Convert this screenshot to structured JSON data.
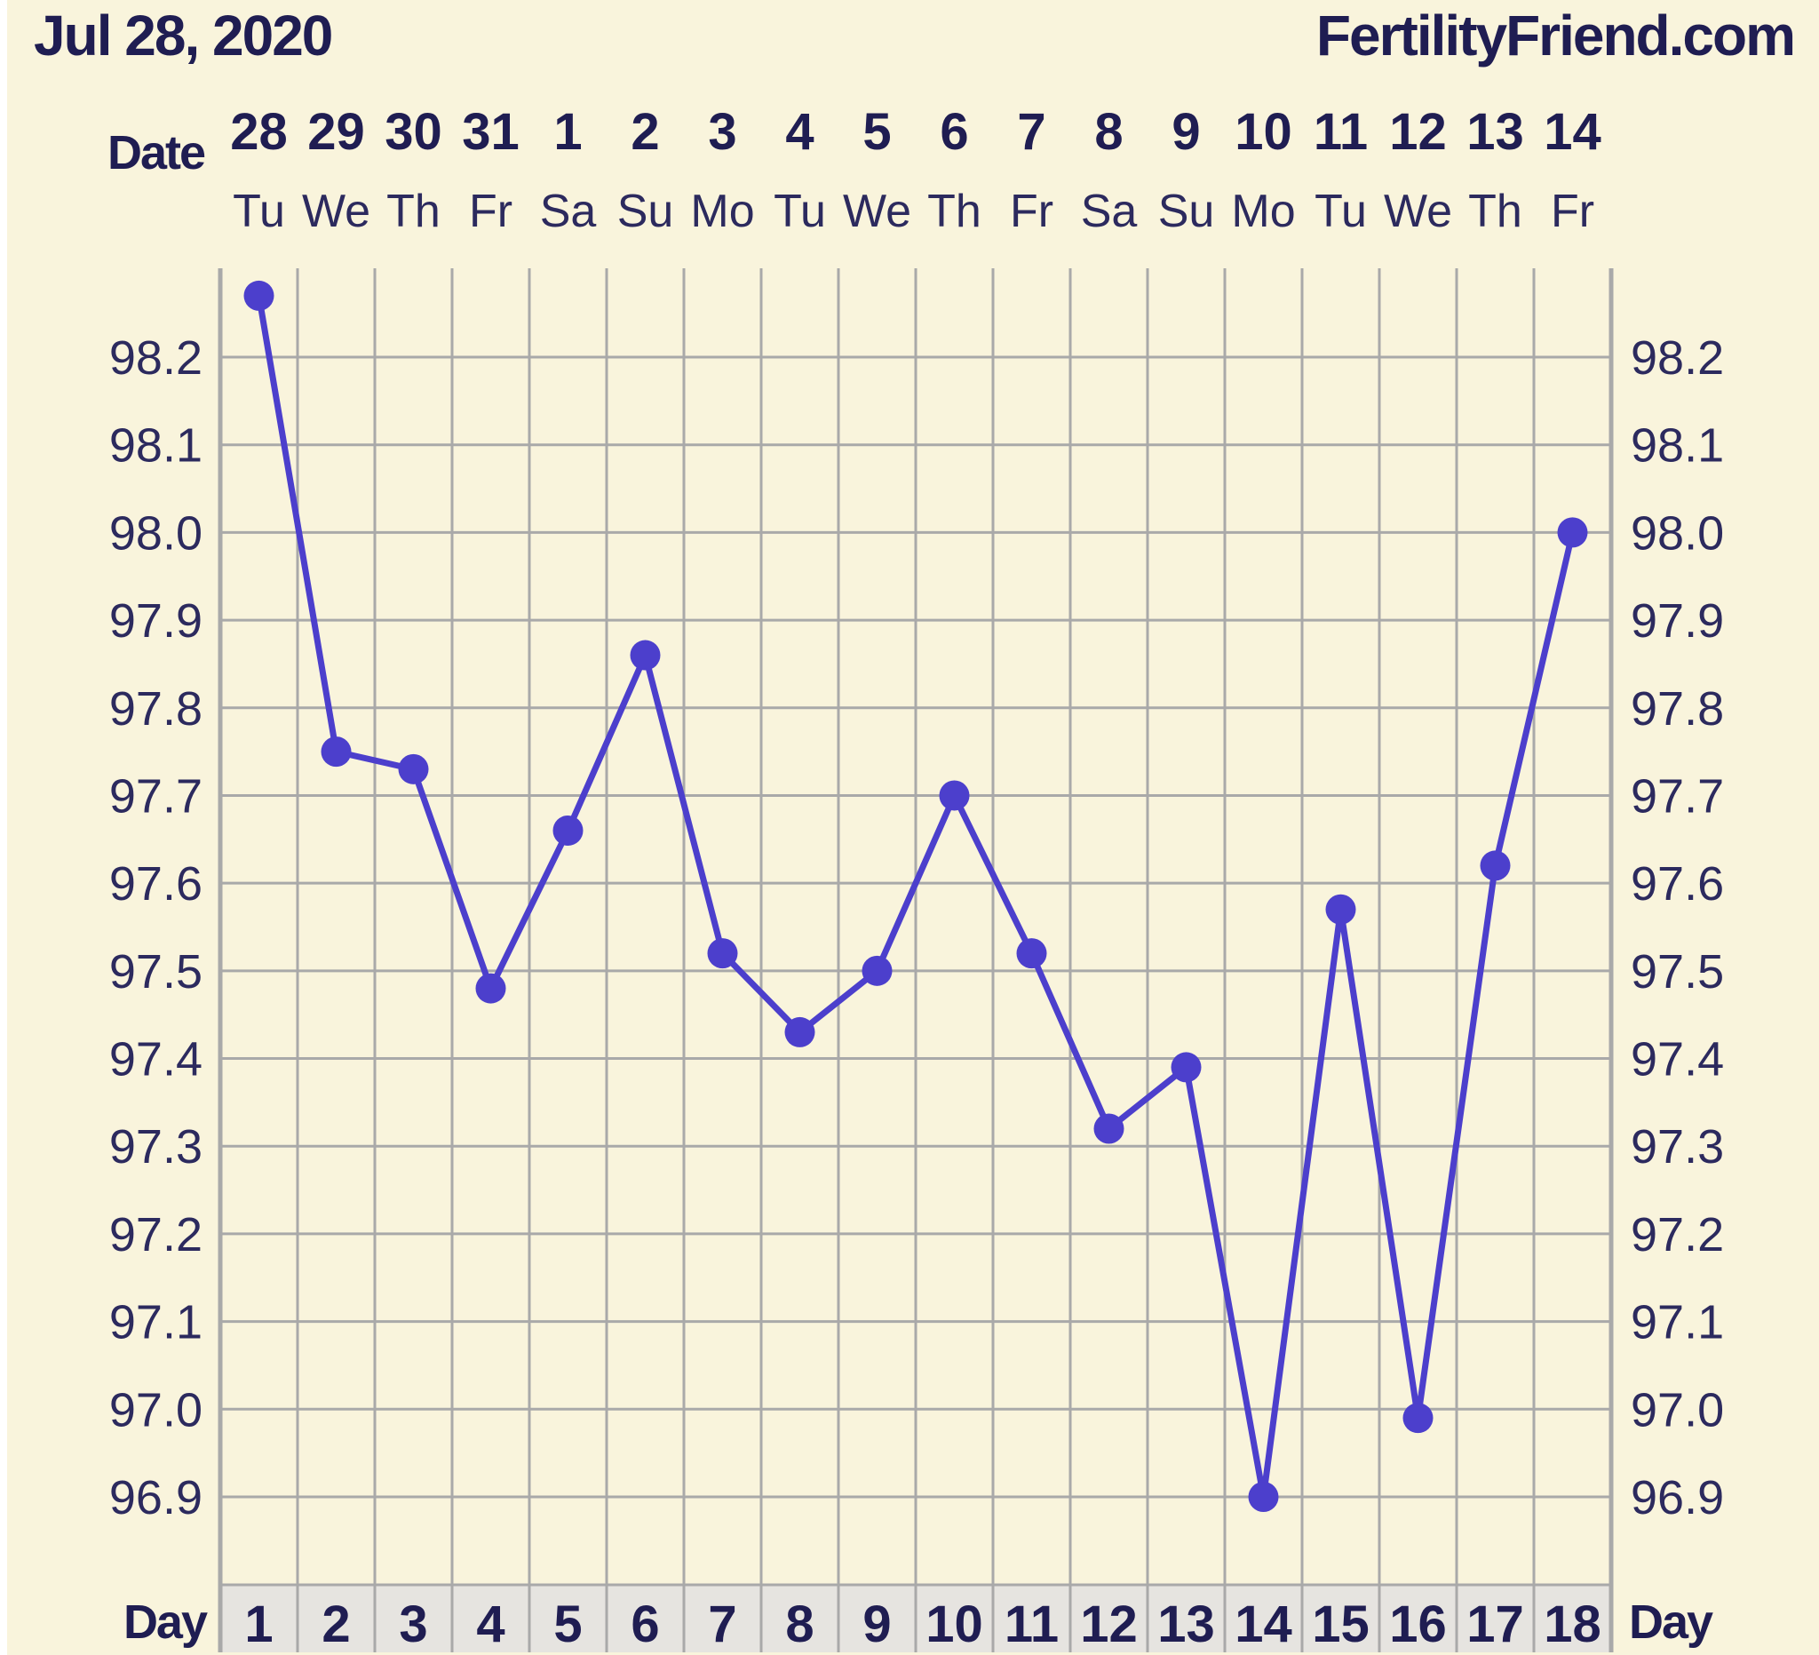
{
  "header": {
    "date": "Jul 28, 2020",
    "site": "FertilityFriend.com"
  },
  "labels": {
    "date_row": "Date",
    "day_left": "Day",
    "day_right": "Day"
  },
  "colors": {
    "background": "#f9f4dc",
    "line": "#4c3fcc",
    "grid": "#a9a9a9",
    "text": "#1f1d52",
    "axis_text": "#2c2a5e",
    "day_cell": "#e6e4e0"
  },
  "chart_data": {
    "type": "line",
    "xlabel": "Day",
    "ylabel": "",
    "ylim": [
      96.8,
      98.3
    ],
    "yticks": [
      "98.2",
      "98.1",
      "98.0",
      "97.9",
      "97.8",
      "97.7",
      "97.6",
      "97.5",
      "97.4",
      "97.3",
      "97.2",
      "97.1",
      "97.0",
      "96.9"
    ],
    "dates": [
      "28",
      "29",
      "30",
      "31",
      "1",
      "2",
      "3",
      "4",
      "5",
      "6",
      "7",
      "8",
      "9",
      "10",
      "11",
      "12",
      "13",
      "14"
    ],
    "weekdays": [
      "Tu",
      "We",
      "Th",
      "Fr",
      "Sa",
      "Su",
      "Mo",
      "Tu",
      "We",
      "Th",
      "Fr",
      "Sa",
      "Su",
      "Mo",
      "Tu",
      "We",
      "Th",
      "Fr"
    ],
    "days": [
      "1",
      "2",
      "3",
      "4",
      "5",
      "6",
      "7",
      "8",
      "9",
      "10",
      "11",
      "12",
      "13",
      "14",
      "15",
      "16",
      "17",
      "18"
    ],
    "series": [
      {
        "values": [
          98.27,
          97.75,
          97.73,
          97.48,
          97.66,
          97.86,
          97.52,
          97.43,
          97.5,
          97.7,
          97.52,
          97.32,
          97.39,
          96.9,
          97.57,
          96.99,
          97.62,
          98.0
        ]
      }
    ],
    "grid": true
  }
}
